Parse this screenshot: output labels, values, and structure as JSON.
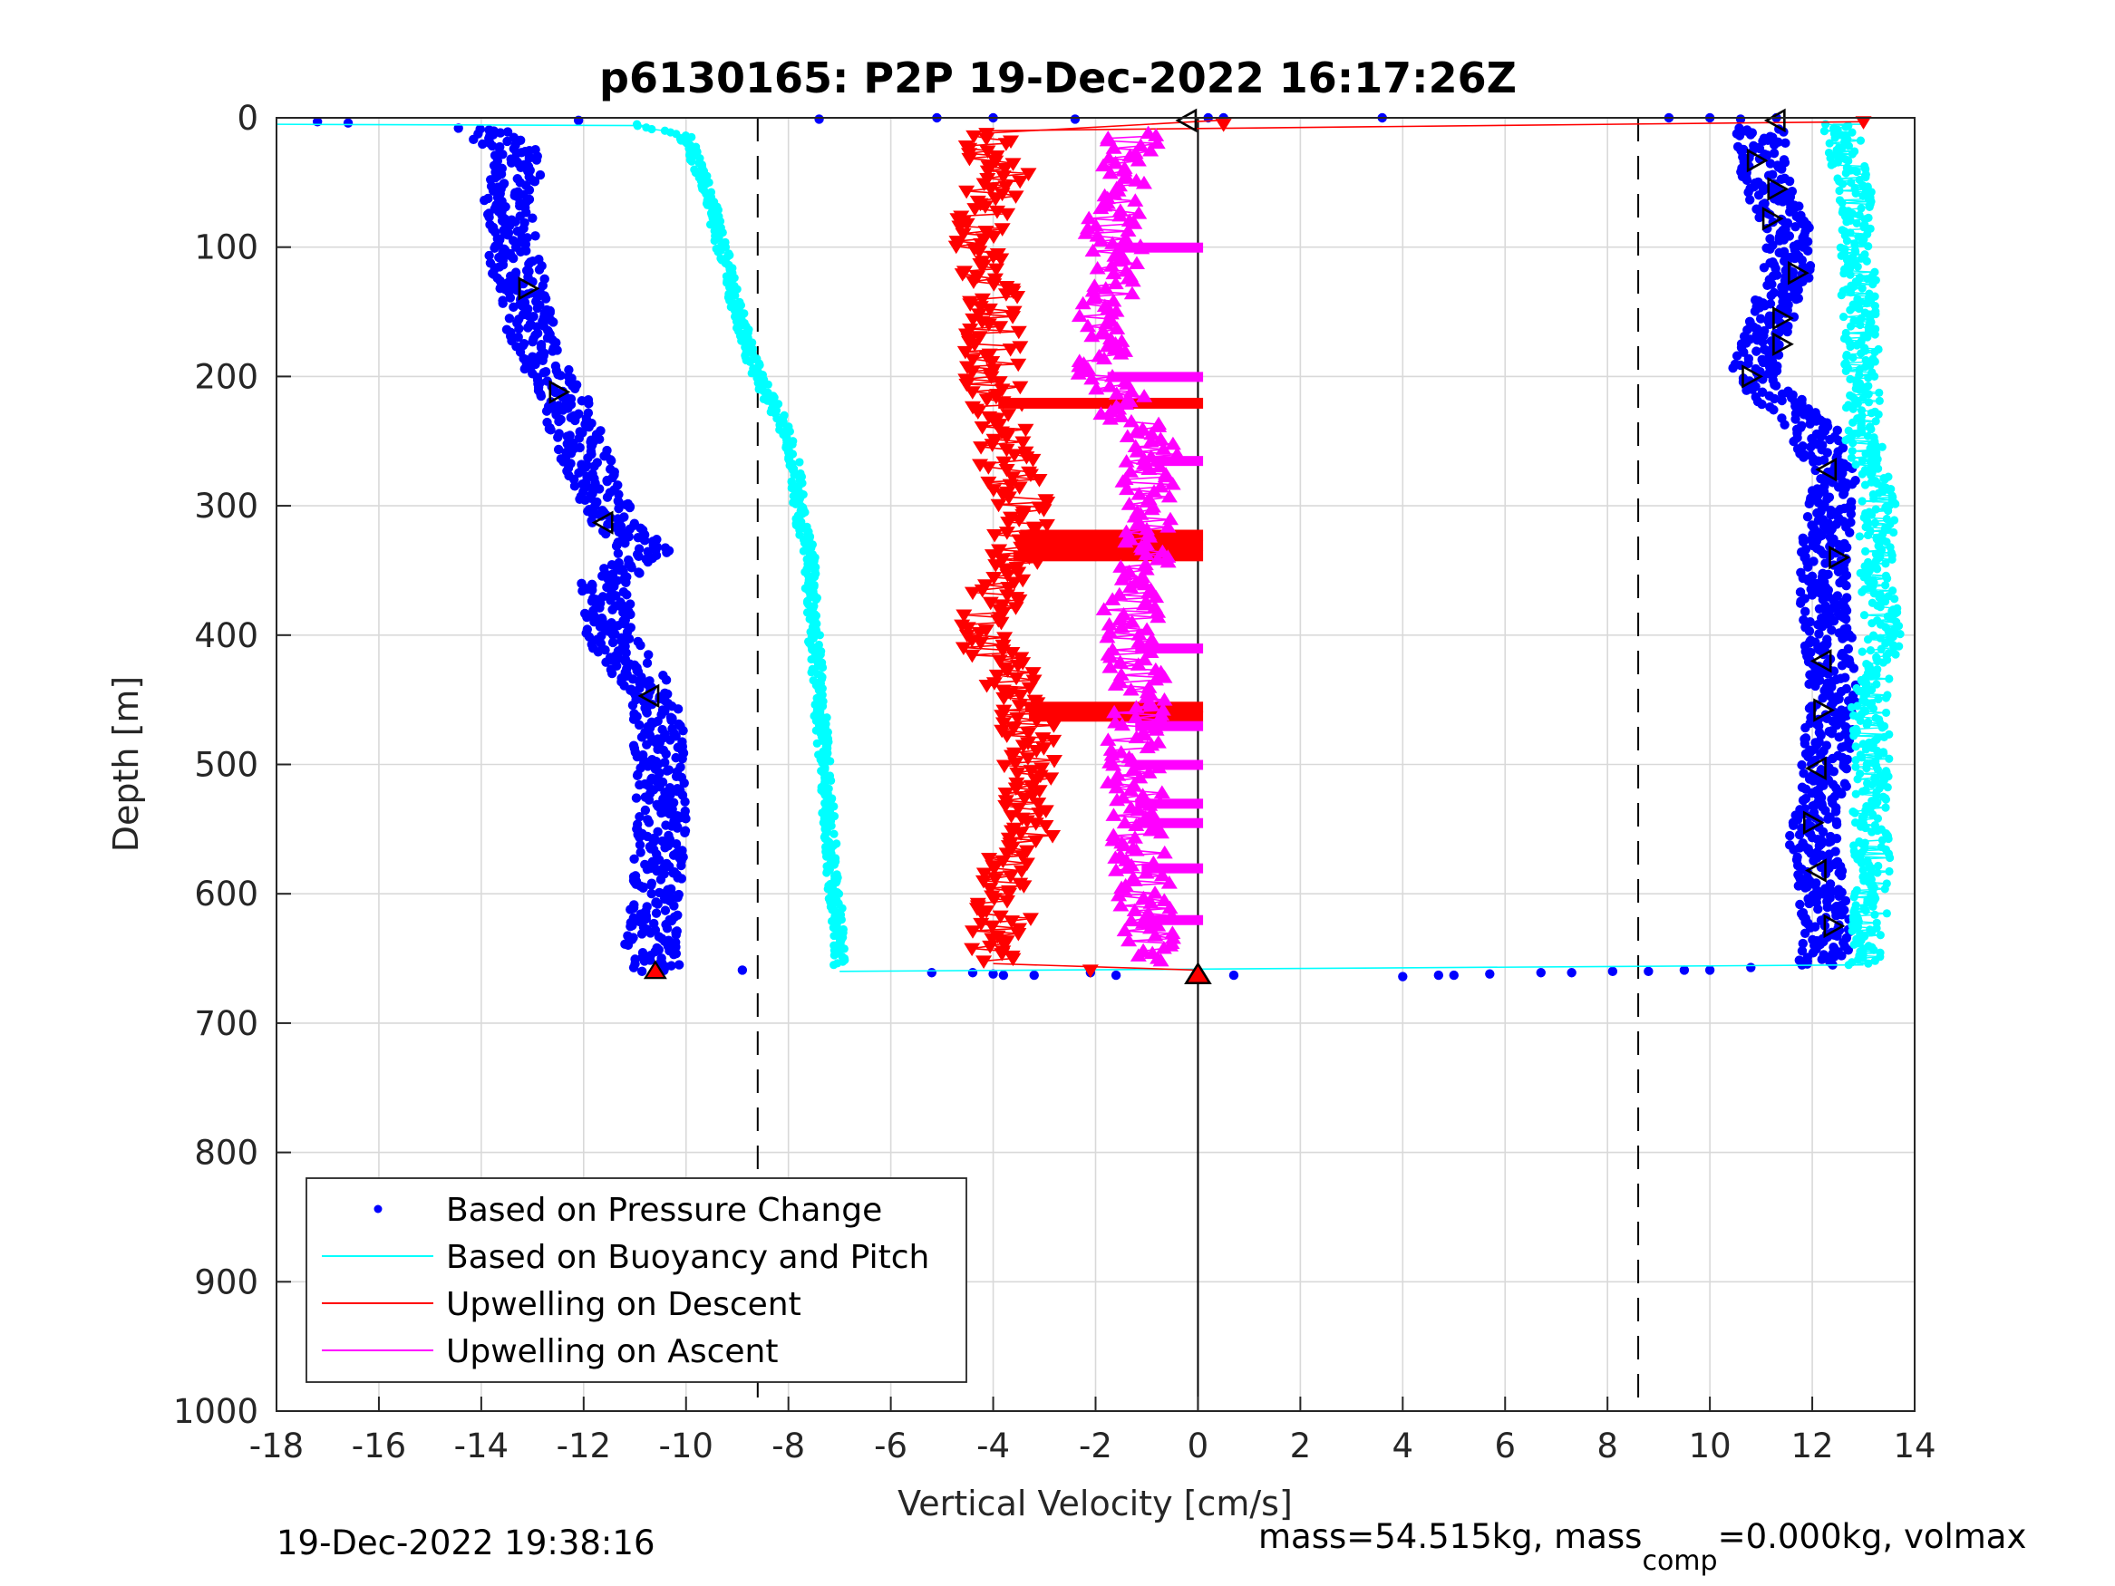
{
  "chart_data": {
    "type": "scatter",
    "title": "p6130165: P2P 19-Dec-2022 16:17:26Z",
    "xlabel": "Vertical Velocity [cm/s]",
    "ylabel": "Depth [m]",
    "xlim": [
      -18,
      14
    ],
    "ylim": [
      0,
      1000
    ],
    "y_reversed": true,
    "grid": true,
    "xticks": [
      "-18",
      "-16",
      "-14",
      "-12",
      "-10",
      "-8",
      "-6",
      "-4",
      "-2",
      "0",
      "2",
      "4",
      "6",
      "8",
      "10",
      "12",
      "14"
    ],
    "yticks": [
      "0",
      "100",
      "200",
      "300",
      "400",
      "500",
      "600",
      "700",
      "800",
      "900",
      "1000"
    ],
    "reference_lines": [
      {
        "x": -8.6,
        "style": "dashed"
      },
      {
        "x": 8.6,
        "style": "dashed"
      },
      {
        "x": 0,
        "style": "solid"
      }
    ],
    "legend_placement": "bottom-left",
    "legend": [
      "Based on Pressure Change",
      "Based on Buoyancy and Pitch",
      "Upwelling on Descent",
      "Upwelling on Ascent"
    ],
    "series": [
      {
        "name": "Based on Pressure Change",
        "color": "#0000ff",
        "marker": "dot",
        "descent": {
          "depth": [
            8,
            30,
            60,
            100,
            135,
            170,
            215,
            260,
            300,
            315,
            335,
            360,
            400,
            450,
            500,
            550,
            600,
            640,
            660
          ],
          "velocity": [
            -14.0,
            -13.2,
            -13.5,
            -13.4,
            -13.2,
            -13.0,
            -12.4,
            -12.0,
            -11.6,
            -11.4,
            -10.8,
            -11.6,
            -11.5,
            -10.6,
            -10.5,
            -10.5,
            -10.6,
            -10.7,
            -10.6
          ]
        },
        "ascent": {
          "depth": [
            655,
            630,
            600,
            560,
            520,
            480,
            440,
            400,
            360,
            320,
            280,
            240,
            200,
            180,
            150,
            120,
            90,
            60,
            30,
            8
          ],
          "velocity": [
            12.2,
            12.3,
            12.2,
            12.0,
            12.2,
            12.3,
            12.4,
            12.3,
            12.2,
            12.3,
            12.4,
            12.0,
            10.8,
            11.0,
            11.2,
            11.5,
            11.6,
            11.2,
            11.0,
            11.0
          ]
        }
      },
      {
        "name": "Based on Buoyancy and Pitch",
        "color": "#00ffff",
        "marker": "dot-line",
        "descent": {
          "depth": [
            5,
            15,
            35,
            50,
            100,
            150,
            200,
            230,
            260,
            300,
            340,
            400,
            450,
            500,
            550,
            600,
            640,
            655
          ],
          "velocity": [
            -11.0,
            -10.0,
            -9.8,
            -9.6,
            -9.3,
            -9.0,
            -8.6,
            -8.2,
            -7.9,
            -7.8,
            -7.6,
            -7.5,
            -7.4,
            -7.3,
            -7.2,
            -7.1,
            -7.0,
            -7.0
          ]
        },
        "ascent": {
          "depth": [
            655,
            620,
            580,
            540,
            500,
            450,
            400,
            350,
            300,
            250,
            200,
            150,
            100,
            50,
            15,
            5
          ],
          "velocity": [
            13.0,
            13.1,
            13.2,
            13.1,
            13.2,
            13.1,
            13.4,
            13.2,
            13.3,
            13.0,
            13.0,
            12.9,
            12.9,
            12.8,
            12.6,
            12.5
          ]
        }
      },
      {
        "name": "Upwelling on Descent",
        "color": "#ff0000",
        "marker": "triangle-down",
        "depth": [
          15,
          40,
          80,
          120,
          160,
          200,
          220,
          260,
          300,
          330,
          360,
          400,
          440,
          460,
          500,
          540,
          580,
          620,
          650
        ],
        "velocity": [
          -4.2,
          -3.8,
          -4.3,
          -4.1,
          -4.0,
          -4.0,
          -3.9,
          -3.8,
          -3.4,
          -3.5,
          -3.9,
          -4.2,
          -3.6,
          -3.3,
          -3.3,
          -3.2,
          -3.7,
          -3.8,
          -4.0
        ]
      },
      {
        "name": "Upwelling on Ascent",
        "color": "#ff00ff",
        "marker": "triangle-up",
        "depth": [
          650,
          620,
          580,
          540,
          500,
          460,
          420,
          380,
          340,
          300,
          260,
          220,
          190,
          150,
          110,
          70,
          40,
          15
        ],
        "velocity": [
          -1.0,
          -1.0,
          -1.1,
          -1.2,
          -1.3,
          -1.2,
          -1.2,
          -1.3,
          -1.1,
          -1.0,
          -0.9,
          -1.5,
          -1.9,
          -1.8,
          -1.6,
          -1.7,
          -1.5,
          -1.2
        ]
      }
    ],
    "footnote_left": "19-Dec-2022 19:38:16",
    "footnote_right": {
      "before": "mass=54.515kg, mass",
      "sub": "comp",
      "after": "=0.000kg, volmax"
    }
  }
}
